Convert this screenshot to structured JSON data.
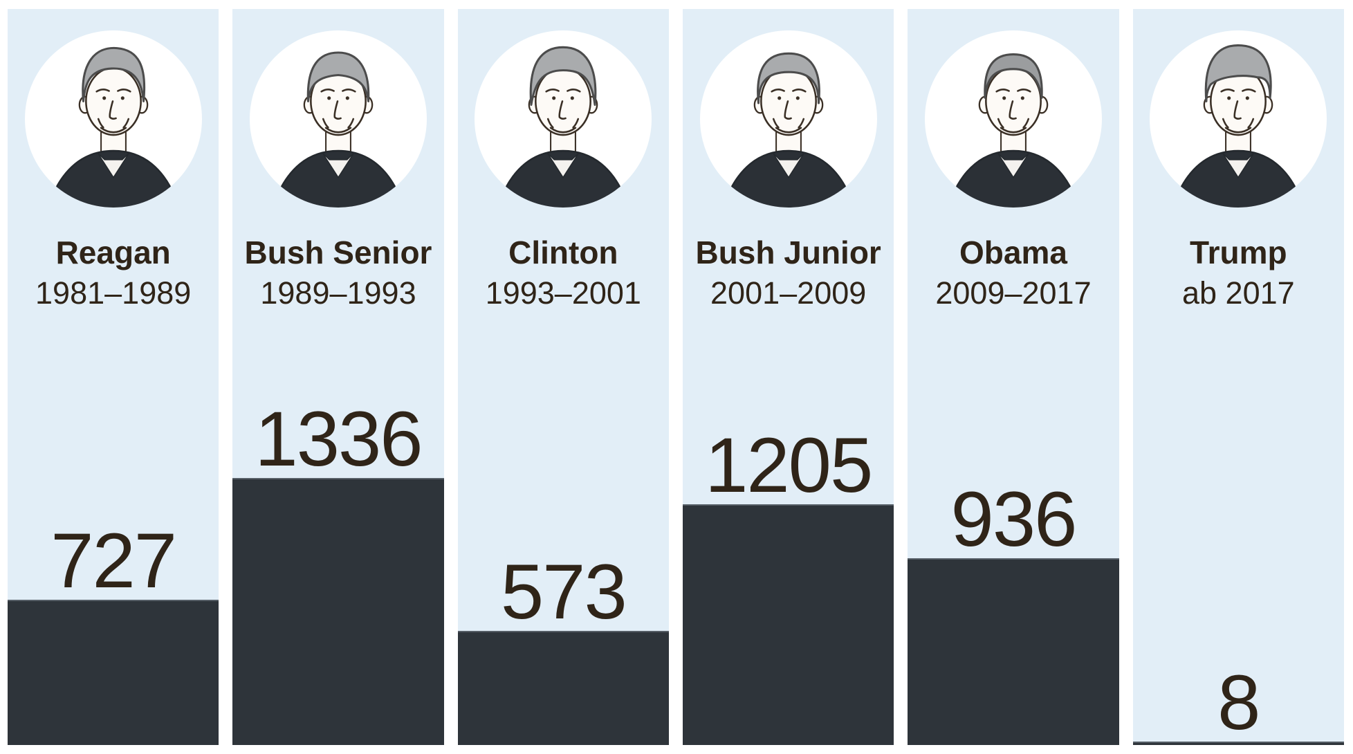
{
  "chart_data": {
    "type": "bar",
    "orientation": "vertical",
    "categories": [
      "Reagan",
      "Bush Senior",
      "Clinton",
      "Bush Junior",
      "Obama",
      "Trump"
    ],
    "terms": [
      "1981–1989",
      "1989–1993",
      "1993–2001",
      "2001–2009",
      "2009–2017",
      "ab 2017"
    ],
    "values": [
      727,
      1336,
      573,
      1205,
      936,
      8
    ],
    "value_labels": [
      "727",
      "1336",
      "573",
      "1205",
      "936",
      "8"
    ],
    "ylim": [
      0,
      1336
    ],
    "axes": "none",
    "grid": false,
    "legend": "none",
    "data_labels_position": "above-bar",
    "language": "de"
  },
  "columns": [
    {
      "name": "Reagan",
      "term": "1981–1989",
      "value": "727",
      "portrait": "reagan"
    },
    {
      "name": "Bush Senior",
      "term": "1989–1993",
      "value": "1336",
      "portrait": "bush-senior"
    },
    {
      "name": "Clinton",
      "term": "1993–2001",
      "value": "573",
      "portrait": "clinton"
    },
    {
      "name": "Bush Junior",
      "term": "2001–2009",
      "value": "1205",
      "portrait": "bush-junior"
    },
    {
      "name": "Obama",
      "term": "2009–2017",
      "value": "936",
      "portrait": "obama"
    },
    {
      "name": "Trump",
      "term": "ab 2017",
      "value": "8",
      "portrait": "trump"
    }
  ],
  "colors": {
    "page_background": "#ffffff",
    "column_background": "#e2eef7",
    "bar": "#2e343a",
    "bar_top_edge": "#565e66",
    "text": "#2f2418",
    "portrait_background": "#ffffff",
    "hair_gray": "#a9abad",
    "hair_dark_gray": "#9b9d9f",
    "line_art": "#3a2f25",
    "skin": "#fdfaf6",
    "suit": "#2b3036",
    "shirt": "#f4f2ef"
  }
}
